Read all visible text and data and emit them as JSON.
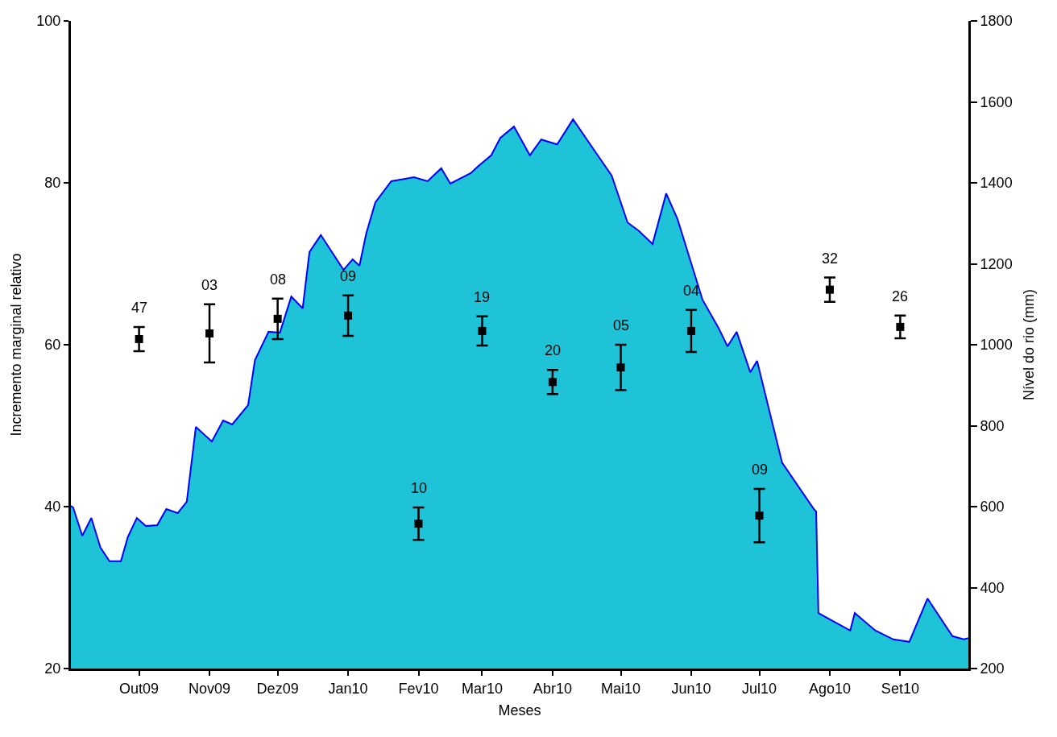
{
  "chart_data": {
    "type": "scatter",
    "xlabel": "Meses",
    "ylabel": "Incremento marginal relativo",
    "y2label": "Nível do rio (mm)",
    "xlim": [
      "2009-09",
      "2010-10"
    ],
    "xticks": [
      {
        "value": "2009-10",
        "label": "Out09"
      },
      {
        "value": "2009-11",
        "label": "Nov09"
      },
      {
        "value": "2009-12",
        "label": "Dez09"
      },
      {
        "value": "2010-01",
        "label": "Jan10"
      },
      {
        "value": "2010-02",
        "label": "Fev10"
      },
      {
        "value": "2010-03",
        "label": "Mar10"
      },
      {
        "value": "2010-04",
        "label": "Abr10"
      },
      {
        "value": "2010-05",
        "label": "Mai10"
      },
      {
        "value": "2010-06",
        "label": "Jun10"
      },
      {
        "value": "2010-07",
        "label": "Jul10"
      },
      {
        "value": "2010-08",
        "label": "Ago10"
      },
      {
        "value": "2010-09",
        "label": "Set10"
      }
    ],
    "ylim": [
      20,
      100
    ],
    "yticks": [
      20,
      40,
      60,
      80,
      100
    ],
    "y2lim": [
      200,
      1800
    ],
    "y2ticks": [
      200,
      400,
      600,
      800,
      1000,
      1200,
      1400,
      1600,
      1800
    ],
    "series": [
      {
        "type": "area",
        "axis": "y2",
        "color": "#1fc3d7",
        "x": [
          "2009-09-01",
          "2009-09-02",
          "2009-09-06",
          "2009-09-10",
          "2009-09-14",
          "2009-09-18",
          "2009-09-23",
          "2009-09-26",
          "2009-09-30",
          "2009-10-04",
          "2009-10-09",
          "2009-10-13",
          "2009-10-18",
          "2009-10-22",
          "2009-10-26",
          "2009-11-02",
          "2009-11-07",
          "2009-11-11",
          "2009-11-18",
          "2009-11-21",
          "2009-11-27",
          "2009-12-02",
          "2009-12-07",
          "2009-12-12",
          "2009-12-15",
          "2009-12-20",
          "2009-12-30",
          "2010-01-03",
          "2010-01-06",
          "2010-01-09",
          "2010-01-13",
          "2010-01-20",
          "2010-01-30",
          "2010-02-05",
          "2010-02-11",
          "2010-02-15",
          "2010-02-24",
          "2010-02-27",
          "2010-03-05",
          "2010-03-09",
          "2010-03-15",
          "2010-03-22",
          "2010-03-27",
          "2010-04-03",
          "2010-04-10",
          "2010-04-20",
          "2010-04-27",
          "2010-05-04",
          "2010-05-09",
          "2010-05-15",
          "2010-05-21",
          "2010-05-26",
          "2010-06-06",
          "2010-06-13",
          "2010-06-17",
          "2010-06-21",
          "2010-06-27",
          "2010-06-30",
          "2010-07-11",
          "2010-07-25",
          "2010-07-26",
          "2010-07-27",
          "2010-08-10",
          "2010-08-12",
          "2010-08-21",
          "2010-08-29",
          "2010-09-05",
          "2010-09-13",
          "2010-09-24",
          "2010-09-29",
          "2010-10-01"
        ],
        "values": [
          602,
          598,
          528,
          572,
          499,
          465,
          465,
          524,
          572,
          552,
          554,
          594,
          584,
          612,
          797,
          761,
          813,
          803,
          851,
          962,
          1032,
          1030,
          1119,
          1090,
          1229,
          1271,
          1185,
          1211,
          1195,
          1275,
          1352,
          1404,
          1414,
          1404,
          1436,
          1398,
          1424,
          1440,
          1468,
          1511,
          1539,
          1468,
          1507,
          1495,
          1557,
          1475,
          1418,
          1302,
          1281,
          1249,
          1374,
          1310,
          1111,
          1042,
          996,
          1032,
          932,
          960,
          709,
          594,
          588,
          337,
          294,
          337,
          294,
          272,
          266,
          373,
          280,
          272,
          275
        ]
      },
      {
        "color": "#000000",
        "marker": "square",
        "x": [
          "2009-10",
          "2009-11",
          "2009-12",
          "2010-01",
          "2010-02",
          "2010-03",
          "2010-04",
          "2010-05",
          "2010-06",
          "2010-07",
          "2010-08",
          "2010-09"
        ],
        "values": [
          60.7,
          61.4,
          63.2,
          63.6,
          37.9,
          61.7,
          55.4,
          57.2,
          61.7,
          38.9,
          66.8,
          62.2
        ],
        "errors": [
          1.5,
          3.6,
          2.5,
          2.5,
          2.0,
          1.8,
          1.5,
          2.8,
          2.6,
          3.3,
          1.5,
          1.4
        ]
      }
    ],
    "annotations": [
      {
        "text": "47",
        "x": "2009-10",
        "y": 60.7
      },
      {
        "text": "03",
        "x": "2009-11",
        "y": 61.4
      },
      {
        "text": "08",
        "x": "2009-12",
        "y": 63.2
      },
      {
        "text": "09",
        "x": "2010-01",
        "y": 63.6
      },
      {
        "text": "10",
        "x": "2010-02",
        "y": 37.9
      },
      {
        "text": "19",
        "x": "2010-03",
        "y": 61.7
      },
      {
        "text": "20",
        "x": "2010-04",
        "y": 55.4
      },
      {
        "text": "05",
        "x": "2010-05",
        "y": 57.2
      },
      {
        "text": "04",
        "x": "2010-06",
        "y": 61.7
      },
      {
        "text": "09",
        "x": "2010-07",
        "y": 38.9
      },
      {
        "text": "32",
        "x": "2010-08",
        "y": 66.8
      },
      {
        "text": "26",
        "x": "2010-09",
        "y": 62.2
      }
    ]
  }
}
